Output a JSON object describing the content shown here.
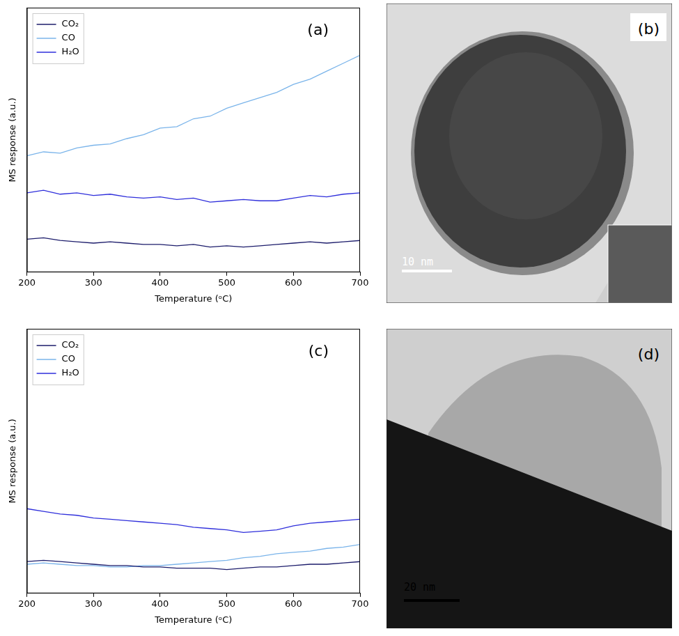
{
  "chart_data": [
    {
      "type": "line",
      "panel_label": "(a)",
      "x_label": "Temperature (ᵒC)",
      "y_label": "MS response (a.u.)",
      "x": [
        200,
        225,
        250,
        275,
        300,
        325,
        350,
        375,
        400,
        425,
        450,
        475,
        500,
        525,
        550,
        575,
        600,
        625,
        650,
        675,
        700
      ],
      "series": [
        {
          "name": "CO₂",
          "color": "#1c1c6b",
          "values": [
            12.5,
            13,
            12,
            11.5,
            11,
            11.5,
            11,
            10.5,
            10.5,
            10,
            10.5,
            9.5,
            10,
            9.5,
            10,
            10.5,
            11,
            11.5,
            11,
            11.5,
            12
          ]
        },
        {
          "name": "CO",
          "color": "#7ab4ea",
          "values": [
            44,
            45.5,
            45,
            47,
            48,
            48.5,
            50.5,
            52,
            54.5,
            55,
            58,
            59,
            62,
            64,
            66,
            68,
            71,
            73,
            76,
            79,
            82
          ]
        },
        {
          "name": "H₂O",
          "color": "#2e2edb",
          "values": [
            30,
            31,
            29.5,
            30,
            29,
            29.5,
            28.5,
            28,
            28.5,
            27.5,
            28,
            26.5,
            27,
            27.5,
            27,
            27,
            28,
            29,
            28.5,
            29.5,
            30
          ]
        }
      ],
      "xlim": [
        200,
        700
      ],
      "xticks": [
        200,
        300,
        400,
        500,
        600,
        700
      ],
      "ylim": [
        0,
        100
      ],
      "yticks": [],
      "tick_labels": "x",
      "grid": false,
      "legend": "upper left"
    },
    {
      "type": "line",
      "panel_label": "(c)",
      "x_label": "Temperature (ᵒC)",
      "y_label": "MS response (a.u.)",
      "x": [
        200,
        225,
        250,
        275,
        300,
        325,
        350,
        375,
        400,
        425,
        450,
        475,
        500,
        525,
        550,
        575,
        600,
        625,
        650,
        675,
        700
      ],
      "series": [
        {
          "name": "CO₂",
          "color": "#1c1c6b",
          "values": [
            12,
            12.5,
            12,
            11.5,
            11,
            10.5,
            10.5,
            10,
            10,
            9.5,
            9.5,
            9.5,
            9,
            9.5,
            10,
            10,
            10.5,
            11,
            11,
            11.5,
            12
          ]
        },
        {
          "name": "CO",
          "color": "#7ab4ea",
          "values": [
            11,
            11.5,
            11,
            10.5,
            10.5,
            10,
            10,
            10.5,
            10.5,
            11,
            11.5,
            12,
            12.5,
            13.5,
            14,
            15,
            15.5,
            16,
            17,
            17.5,
            18.5
          ]
        },
        {
          "name": "H₂O",
          "color": "#2e2edb",
          "values": [
            32,
            31,
            30,
            29.5,
            28.5,
            28,
            27.5,
            27,
            26.5,
            26,
            25,
            24.5,
            24,
            23,
            23.5,
            24,
            25.5,
            26.5,
            27,
            27.5,
            28
          ]
        }
      ],
      "xlim": [
        200,
        700
      ],
      "xticks": [
        200,
        300,
        400,
        500,
        600,
        700
      ],
      "ylim": [
        0,
        100
      ],
      "yticks": [],
      "tick_labels": "x",
      "grid": false,
      "legend": "upper left"
    }
  ],
  "images": [
    {
      "panel_label": "(b)",
      "scale_bar": "10 nm"
    },
    {
      "panel_label": "(d)",
      "scale_bar": "20 nm"
    }
  ]
}
